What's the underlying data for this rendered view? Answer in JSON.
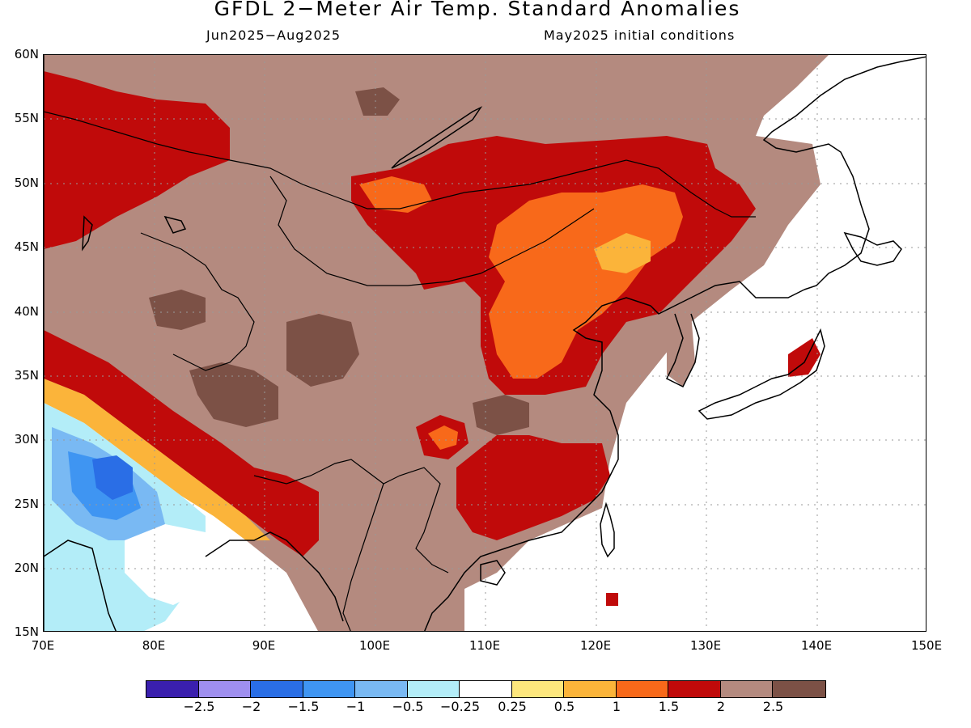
{
  "title": "GFDL 2−Meter Air Temp. Standard Anomalies",
  "subtitle_left": "Jun2025−Aug2025",
  "subtitle_right": "May2025 initial conditions",
  "lat_labels": [
    "60N",
    "55N",
    "50N",
    "45N",
    "40N",
    "35N",
    "30N",
    "25N",
    "20N",
    "15N"
  ],
  "lon_labels": [
    "70E",
    "80E",
    "90E",
    "100E",
    "110E",
    "120E",
    "130E",
    "140E",
    "150E"
  ],
  "colorbar": {
    "colors": [
      "#3a1fae",
      "#9f8ff0",
      "#2a6ee6",
      "#3f95f2",
      "#79b9f3",
      "#b3edf8",
      "#ffffff",
      "#fde77d",
      "#fbb43a",
      "#f8691a",
      "#c00a0a",
      "#b48a7f",
      "#7c5146"
    ],
    "labels": [
      "−2.5",
      "−2",
      "−1.5",
      "−1",
      "−0.5",
      "−0.25",
      "0.25",
      "0.5",
      "1",
      "1.5",
      "2",
      "2.5"
    ]
  },
  "legend_colors": {
    "brown_light": "#b48a7f",
    "brown_dark": "#7c5146",
    "red": "#c00a0a",
    "orange": "#f8691a",
    "light_orange": "#fbb43a",
    "yellow": "#fde77d",
    "pale_blue": "#b3edf8",
    "light_blue": "#79b9f3",
    "blue": "#3f95f2",
    "deep_blue": "#2a6ee6"
  }
}
